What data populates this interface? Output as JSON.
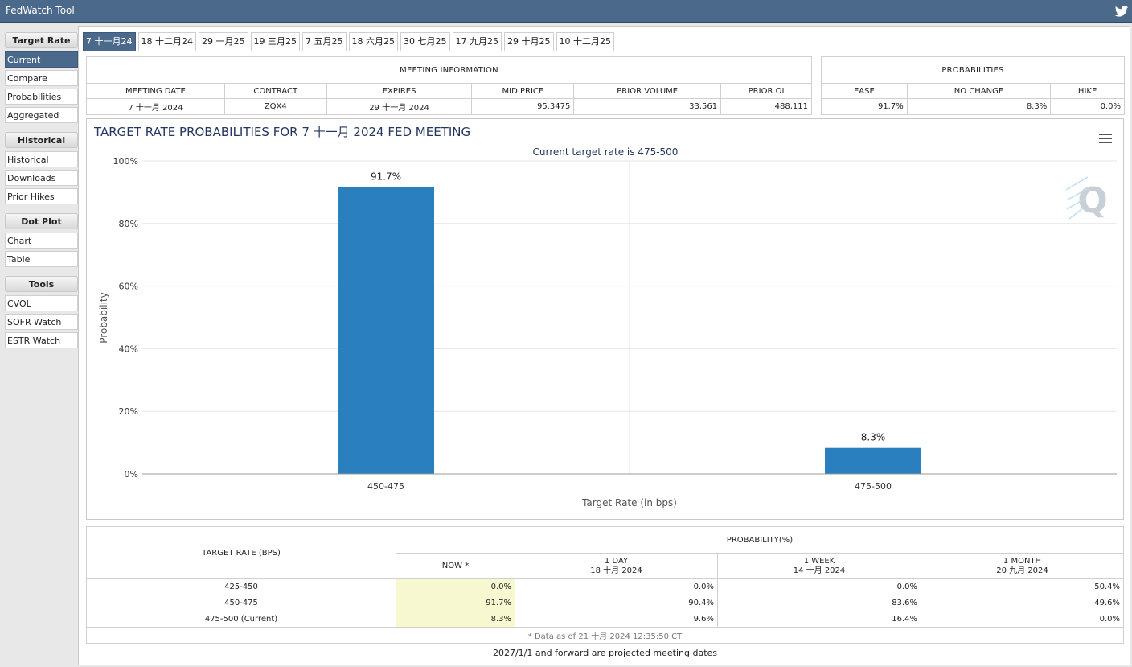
{
  "app": {
    "title": "FedWatch Tool",
    "share_icon": "twitter-icon"
  },
  "sidebar": {
    "sections": [
      {
        "heading": "Target Rate",
        "items": [
          "Current",
          "Compare",
          "Probabilities",
          "Aggregated"
        ]
      },
      {
        "heading": "Historical",
        "items": [
          "Historical",
          "Downloads",
          "Prior Hikes"
        ]
      },
      {
        "heading": "Dot Plot",
        "items": [
          "Chart",
          "Table"
        ]
      },
      {
        "heading": "Tools",
        "items": [
          "CVOL",
          "SOFR Watch",
          "ESTR Watch"
        ]
      }
    ],
    "active": "Current"
  },
  "tabs": [
    "7 十一月24",
    "18 十二月24",
    "29 一月25",
    "19 三月25",
    "7 五月25",
    "18 六月25",
    "30 七月25",
    "17 九月25",
    "29 十月25",
    "10 十二月25"
  ],
  "meeting_info": {
    "heading": "MEETING INFORMATION",
    "columns": [
      "MEETING DATE",
      "CONTRACT",
      "EXPIRES",
      "MID PRICE",
      "PRIOR VOLUME",
      "PRIOR OI"
    ],
    "values": [
      "7 十一月 2024",
      "ZQX4",
      "29 十一月 2024",
      "95.3475",
      "33,561",
      "488,111"
    ]
  },
  "probabilities": {
    "heading": "PROBABILITIES",
    "columns": [
      "EASE",
      "NO CHANGE",
      "HIKE"
    ],
    "values": [
      "91.7%",
      "8.3%",
      "0.0%"
    ]
  },
  "chart_data": {
    "type": "bar",
    "title": "TARGET RATE PROBABILITIES FOR 7 十一月 2024 FED MEETING",
    "subtitle": "Current target rate is 475-500",
    "xlabel": "Target Rate (in bps)",
    "ylabel": "Probability",
    "categories": [
      "450-475",
      "475-500"
    ],
    "values": [
      91.7,
      8.3
    ],
    "data_labels": [
      "91.7%",
      "8.3%"
    ],
    "yticks": [
      "0%",
      "20%",
      "40%",
      "60%",
      "80%",
      "100%"
    ],
    "ylim": [
      0,
      100
    ],
    "bar_color": "#2a7fbf",
    "grid": true,
    "legend": "none"
  },
  "rate_table": {
    "rate_heading": "TARGET RATE (BPS)",
    "prob_heading": "PROBABILITY(%)",
    "columns": [
      {
        "line1": "NOW *",
        "line2": ""
      },
      {
        "line1": "1 DAY",
        "line2": "18 十月 2024"
      },
      {
        "line1": "1 WEEK",
        "line2": "14 十月 2024"
      },
      {
        "line1": "1 MONTH",
        "line2": "20 九月 2024"
      }
    ],
    "rows": [
      {
        "rate": "425-450",
        "values": [
          "0.0%",
          "0.0%",
          "0.0%",
          "50.4%"
        ]
      },
      {
        "rate": "450-475",
        "values": [
          "91.7%",
          "90.4%",
          "83.6%",
          "49.6%"
        ]
      },
      {
        "rate": "475-500 (Current)",
        "values": [
          "8.3%",
          "9.6%",
          "16.4%",
          "0.0%"
        ]
      }
    ],
    "footnote": "* Data as of 21 十月 2024 12:35:50 CT"
  },
  "projection_note": "2027/1/1 and forward are projected meeting dates",
  "colors": {
    "topbar": "#4b6a8b",
    "active": "#4b6a8b",
    "bar": "#2a7fbf",
    "now_col": "#f7f7d0"
  }
}
